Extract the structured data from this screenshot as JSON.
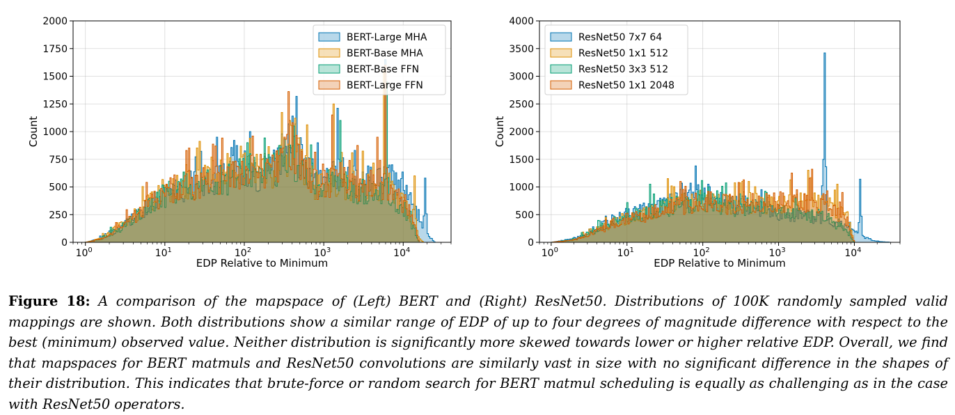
{
  "figure": {
    "caption_label": "Figure 18:",
    "caption_text": "A comparison of the mapspace of (Left) BERT and (Right) ResNet50. Distributions of 100K randomly sampled valid mappings are shown. Both distributions show a similar range of EDP of up to four degrees of magnitude difference with respect to the best (minimum) observed value. Neither distribution is significantly more skewed towards lower or higher relative EDP. Overall, we find that mapspaces for BERT matmuls and ResNet50 convolutions are similarly vast in size with no significant difference in the shapes of their distribution. This indicates that brute-force or random search for BERT matmul scheduling is equally as challenging as in the case with ResNet50 operators."
  },
  "colors": {
    "series1": "#0173b2",
    "series2": "#de8f05",
    "series3": "#029e73",
    "series4": "#d55e00"
  },
  "chart_data": [
    {
      "id": "bert",
      "type": "histogram",
      "xscale": "log",
      "xlabel": "EDP Relative to Minimum",
      "ylabel": "Count",
      "xlim": [
        0.7,
        40000
      ],
      "ylim": [
        0,
        2000
      ],
      "yticks": [
        0,
        250,
        500,
        750,
        1000,
        1250,
        1500,
        1750,
        2000
      ],
      "xticks": [
        {
          "value": 1,
          "base": "10",
          "exp": "0"
        },
        {
          "value": 10,
          "base": "10",
          "exp": "1"
        },
        {
          "value": 100,
          "base": "10",
          "exp": "2"
        },
        {
          "value": 1000,
          "base": "10",
          "exp": "3"
        },
        {
          "value": 10000,
          "base": "10",
          "exp": "4"
        }
      ],
      "legend": {
        "position": "top-right"
      },
      "grid": true,
      "series": [
        {
          "name": "BERT-Large MHA",
          "color": "#0173b2",
          "profile": [
            [
              1,
              0
            ],
            [
              1.5,
              30
            ],
            [
              3,
              150
            ],
            [
              6,
              320
            ],
            [
              12,
              480
            ],
            [
              25,
              520
            ],
            [
              50,
              560
            ],
            [
              100,
              680
            ],
            [
              200,
              600
            ],
            [
              400,
              880
            ],
            [
              800,
              540
            ],
            [
              1500,
              620
            ],
            [
              3000,
              520
            ],
            [
              6000,
              600
            ],
            [
              12000,
              420
            ],
            [
              20000,
              80
            ],
            [
              25000,
              0
            ]
          ],
          "spikes": [
            [
              120,
              1000
            ],
            [
              400,
              1140
            ],
            [
              1500,
              1210
            ],
            [
              6000,
              1650
            ],
            [
              19000,
              580
            ]
          ]
        },
        {
          "name": "BERT-Base MHA",
          "color": "#de8f05",
          "profile": [
            [
              1,
              0
            ],
            [
              1.5,
              30
            ],
            [
              3,
              160
            ],
            [
              6,
              330
            ],
            [
              12,
              480
            ],
            [
              25,
              530
            ],
            [
              50,
              600
            ],
            [
              100,
              700
            ],
            [
              200,
              640
            ],
            [
              400,
              850
            ],
            [
              800,
              520
            ],
            [
              1500,
              560
            ],
            [
              3000,
              480
            ],
            [
              6000,
              520
            ],
            [
              12000,
              280
            ],
            [
              16000,
              30
            ],
            [
              18000,
              0
            ]
          ],
          "spikes": [
            [
              120,
              940
            ],
            [
              380,
              1100
            ],
            [
              1350,
              1250
            ],
            [
              5800,
              1550
            ],
            [
              14000,
              600
            ]
          ]
        },
        {
          "name": "BERT-Base FFN",
          "color": "#029e73",
          "profile": [
            [
              1,
              0
            ],
            [
              1.5,
              25
            ],
            [
              3,
              140
            ],
            [
              6,
              310
            ],
            [
              12,
              470
            ],
            [
              25,
              510
            ],
            [
              50,
              550
            ],
            [
              100,
              650
            ],
            [
              200,
              600
            ],
            [
              400,
              800
            ],
            [
              800,
              500
            ],
            [
              1500,
              540
            ],
            [
              3000,
              460
            ],
            [
              6000,
              480
            ],
            [
              12000,
              220
            ],
            [
              16000,
              0
            ]
          ],
          "spikes": [
            [
              110,
              900
            ],
            [
              420,
              1050
            ],
            [
              1600,
              1100
            ],
            [
              6200,
              1450
            ]
          ]
        },
        {
          "name": "BERT-Large FFN",
          "color": "#d55e00",
          "profile": [
            [
              1,
              0
            ],
            [
              1.5,
              25
            ],
            [
              3,
              150
            ],
            [
              6,
              320
            ],
            [
              12,
              480
            ],
            [
              25,
              520
            ],
            [
              50,
              570
            ],
            [
              100,
              660
            ],
            [
              200,
              610
            ],
            [
              400,
              820
            ],
            [
              800,
              520
            ],
            [
              1500,
              580
            ],
            [
              3000,
              500
            ],
            [
              6000,
              540
            ],
            [
              12000,
              300
            ],
            [
              16000,
              0
            ]
          ],
          "spikes": [
            [
              130,
              960
            ],
            [
              410,
              1080
            ],
            [
              1300,
              1150
            ],
            [
              4800,
              950
            ],
            [
              6000,
              1600
            ]
          ]
        }
      ]
    },
    {
      "id": "resnet",
      "type": "histogram",
      "xscale": "log",
      "xlabel": "EDP Relative to Minimum",
      "ylabel": "Count",
      "xlim": [
        0.7,
        40000
      ],
      "ylim": [
        0,
        4000
      ],
      "yticks": [
        0,
        500,
        1000,
        1500,
        2000,
        2500,
        3000,
        3500,
        4000
      ],
      "xticks": [
        {
          "value": 1,
          "base": "10",
          "exp": "0"
        },
        {
          "value": 10,
          "base": "10",
          "exp": "1"
        },
        {
          "value": 100,
          "base": "10",
          "exp": "2"
        },
        {
          "value": 1000,
          "base": "10",
          "exp": "3"
        },
        {
          "value": 10000,
          "base": "10",
          "exp": "4"
        }
      ],
      "legend": {
        "position": "top-left"
      },
      "grid": true,
      "series": [
        {
          "name": "ResNet50 7x7 64",
          "color": "#0173b2",
          "profile": [
            [
              1,
              0
            ],
            [
              2,
              60
            ],
            [
              4,
              250
            ],
            [
              8,
              450
            ],
            [
              15,
              550
            ],
            [
              30,
              650
            ],
            [
              60,
              800
            ],
            [
              100,
              900
            ],
            [
              200,
              700
            ],
            [
              500,
              650
            ],
            [
              1000,
              550
            ],
            [
              2000,
              500
            ],
            [
              4000,
              450
            ],
            [
              8000,
              250
            ],
            [
              14000,
              80
            ],
            [
              20000,
              20
            ],
            [
              30000,
              0
            ]
          ],
          "spikes": [
            [
              80,
              1380
            ],
            [
              4000,
              3420
            ],
            [
              12000,
              1140
            ]
          ]
        },
        {
          "name": "ResNet50 1x1 512",
          "color": "#de8f05",
          "profile": [
            [
              1,
              0
            ],
            [
              2,
              40
            ],
            [
              4,
              220
            ],
            [
              8,
              400
            ],
            [
              15,
              480
            ],
            [
              30,
              620
            ],
            [
              60,
              700
            ],
            [
              100,
              750
            ],
            [
              200,
              700
            ],
            [
              500,
              720
            ],
            [
              1000,
              700
            ],
            [
              2000,
              750
            ],
            [
              4000,
              680
            ],
            [
              8000,
              500
            ],
            [
              10000,
              0
            ]
          ],
          "spikes": [
            [
              35,
              1150
            ],
            [
              400,
              1100
            ],
            [
              2500,
              1300
            ],
            [
              6000,
              1050
            ]
          ]
        },
        {
          "name": "ResNet50 3x3 512",
          "color": "#029e73",
          "profile": [
            [
              1,
              0
            ],
            [
              2,
              50
            ],
            [
              4,
              230
            ],
            [
              8,
              420
            ],
            [
              15,
              500
            ],
            [
              30,
              600
            ],
            [
              60,
              720
            ],
            [
              100,
              760
            ],
            [
              200,
              660
            ],
            [
              500,
              620
            ],
            [
              1000,
              560
            ],
            [
              2000,
              520
            ],
            [
              4000,
              460
            ],
            [
              8000,
              200
            ],
            [
              10000,
              0
            ]
          ],
          "spikes": [
            [
              20,
              1050
            ],
            [
              120,
              1000
            ],
            [
              700,
              900
            ]
          ]
        },
        {
          "name": "ResNet50 1x1 2048",
          "color": "#d55e00",
          "profile": [
            [
              1,
              0
            ],
            [
              2,
              40
            ],
            [
              4,
              200
            ],
            [
              8,
              380
            ],
            [
              15,
              470
            ],
            [
              30,
              580
            ],
            [
              60,
              680
            ],
            [
              100,
              740
            ],
            [
              200,
              680
            ],
            [
              500,
              700
            ],
            [
              1000,
              720
            ],
            [
              2000,
              760
            ],
            [
              4000,
              700
            ],
            [
              8000,
              400
            ],
            [
              10000,
              0
            ]
          ],
          "spikes": [
            [
              50,
              1100
            ],
            [
              300,
              1080
            ],
            [
              1500,
              1250
            ],
            [
              2800,
              1320
            ],
            [
              7000,
              900
            ]
          ]
        }
      ]
    }
  ]
}
